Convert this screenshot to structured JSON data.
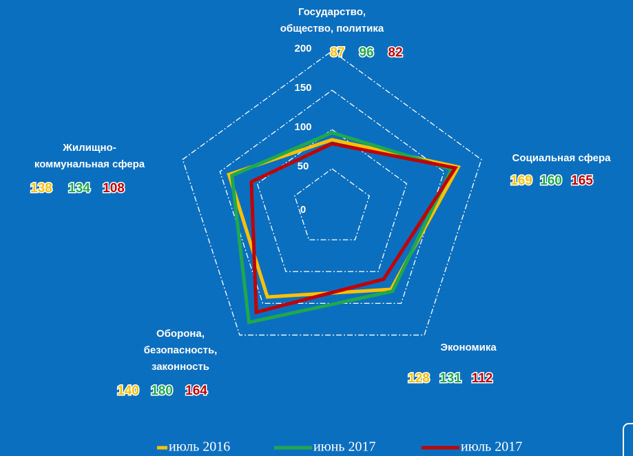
{
  "chart_data": {
    "type": "radar",
    "categories": [
      [
        "Государство,",
        "общество, политика"
      ],
      [
        "Социальная сфера"
      ],
      [
        "Экономика"
      ],
      [
        "Оборона,",
        "безопасность,",
        "законность"
      ],
      [
        "Жилищно-",
        "коммунальная сфера"
      ]
    ],
    "series": [
      {
        "name": "июль 2016",
        "color": "#ffc000",
        "values": [
          87,
          169,
          128,
          140,
          138
        ]
      },
      {
        "name": "июнь 2017",
        "color": "#1fa84f",
        "values": [
          96,
          160,
          131,
          180,
          134
        ]
      },
      {
        "name": "июль 2017",
        "color": "#c00000",
        "values": [
          82,
          165,
          112,
          164,
          108
        ]
      }
    ],
    "ylim": [
      0,
      200
    ],
    "yticks": [
      0,
      50,
      100,
      150,
      200
    ],
    "grid": true,
    "legend": "bottom"
  }
}
